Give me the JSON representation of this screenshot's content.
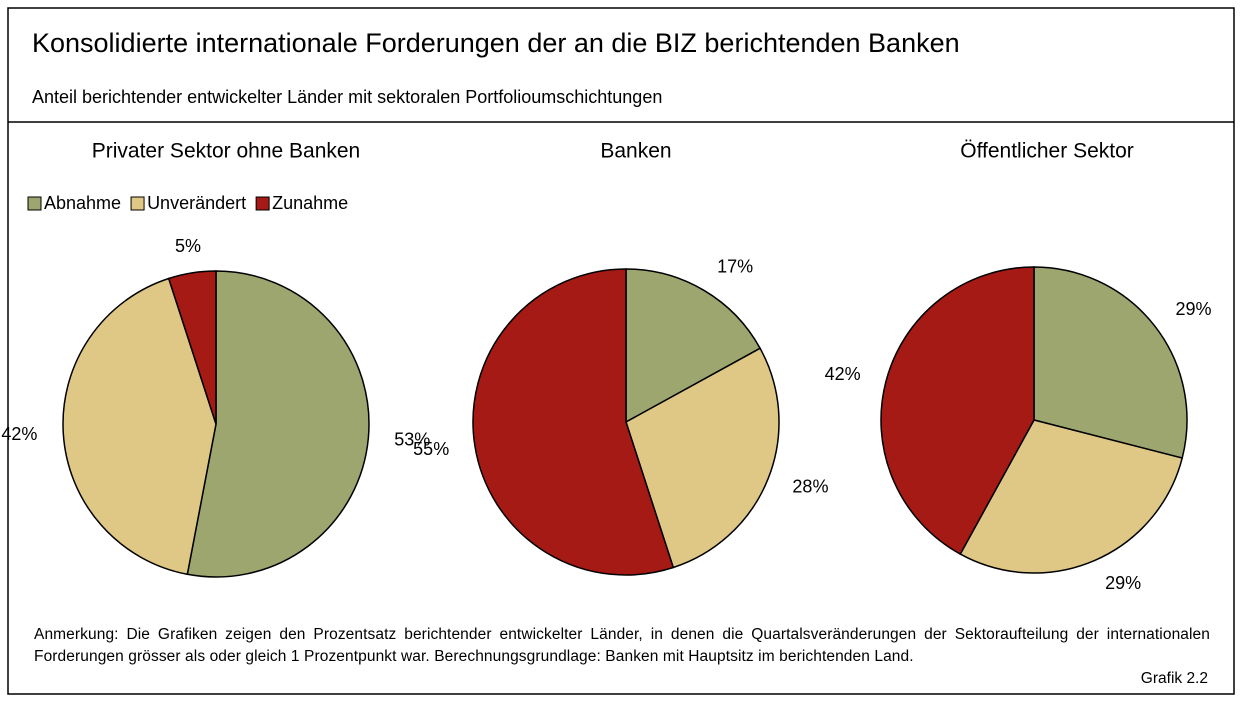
{
  "title": "Konsolidierte internationale Forderungen der an die BIZ berichtenden Banken",
  "subtitle": "Anteil berichtender entwickelter Länder mit sektoralen Portfolioumschichtungen",
  "note": "Anmerkung: Die Grafiken zeigen den Prozentsatz berichtender entwickelter Länder, in denen die Quartalsveränderungen der Sektoraufteilung der internationalen Forderungen grösser als oder gleich 1 Prozentpunkt war. Berechnungsgrundlage: Banken mit Hauptsitz im berichtenden Land.",
  "figure_label": "Grafik 2.2",
  "chart_data": [
    {
      "type": "pie",
      "title": "Privater Sektor ohne Banken",
      "categories": [
        "Abnahme",
        "Unverändert",
        "Zunahme"
      ],
      "values": [
        53,
        42,
        5
      ],
      "value_labels": [
        "53%",
        "42%",
        "5%"
      ],
      "colors": [
        "#9ca66e",
        "#dfc885",
        "#a51a14"
      ],
      "legend": "top-left"
    },
    {
      "type": "pie",
      "title": "Banken",
      "categories": [
        "Abnahme",
        "Unverändert",
        "Zunahme"
      ],
      "values": [
        17,
        28,
        55
      ],
      "value_labels": [
        "17%",
        "28%",
        "55%"
      ],
      "colors": [
        "#9ca66e",
        "#dfc885",
        "#a51a14"
      ]
    },
    {
      "type": "pie",
      "title": "Öffentlicher Sektor",
      "categories": [
        "Abnahme",
        "Unverändert",
        "Zunahme"
      ],
      "values": [
        29,
        29,
        42
      ],
      "value_labels": [
        "29%",
        "29%",
        "42%"
      ],
      "colors": [
        "#9ca66e",
        "#dfc885",
        "#a51a14"
      ]
    }
  ]
}
